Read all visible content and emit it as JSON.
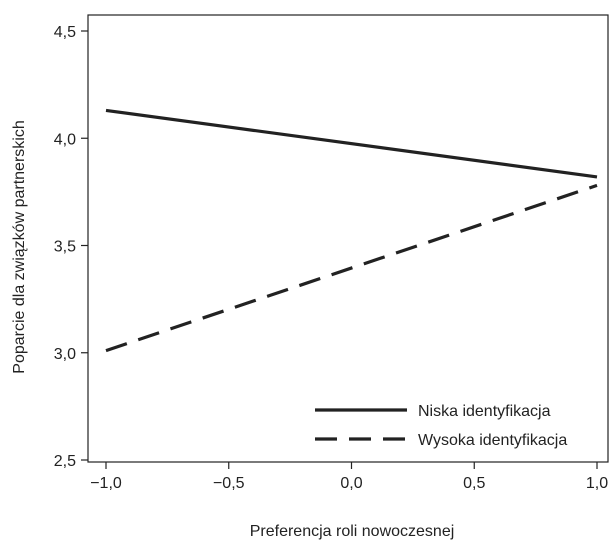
{
  "chart_data": {
    "type": "line",
    "title": "",
    "xlabel": "Preferencja roli nowoczesnej",
    "ylabel": "Poparcie dla związków partnerskich",
    "xlim": [
      -1.0,
      1.0
    ],
    "ylim": [
      2.5,
      4.5
    ],
    "x_ticks": [
      -1.0,
      -0.5,
      0.0,
      0.5,
      1.0
    ],
    "x_tick_labels": [
      "−1,0",
      "−0,5",
      "0,0",
      "0,5",
      "1,0"
    ],
    "y_ticks": [
      2.5,
      3.0,
      3.5,
      4.0,
      4.5
    ],
    "y_tick_labels": [
      "2,5",
      "3,0",
      "3,5",
      "4,0",
      "4,5"
    ],
    "grid": false,
    "legend_position": "bottom-right",
    "series": [
      {
        "name": "Niska identyfikacja",
        "style": "solid",
        "color": "#222222",
        "x": [
          -1.0,
          1.0
        ],
        "y": [
          4.13,
          3.82
        ]
      },
      {
        "name": "Wysoka identyfikacja",
        "style": "dashed",
        "color": "#222222",
        "x": [
          -1.0,
          1.0
        ],
        "y": [
          3.01,
          3.78
        ]
      }
    ]
  }
}
